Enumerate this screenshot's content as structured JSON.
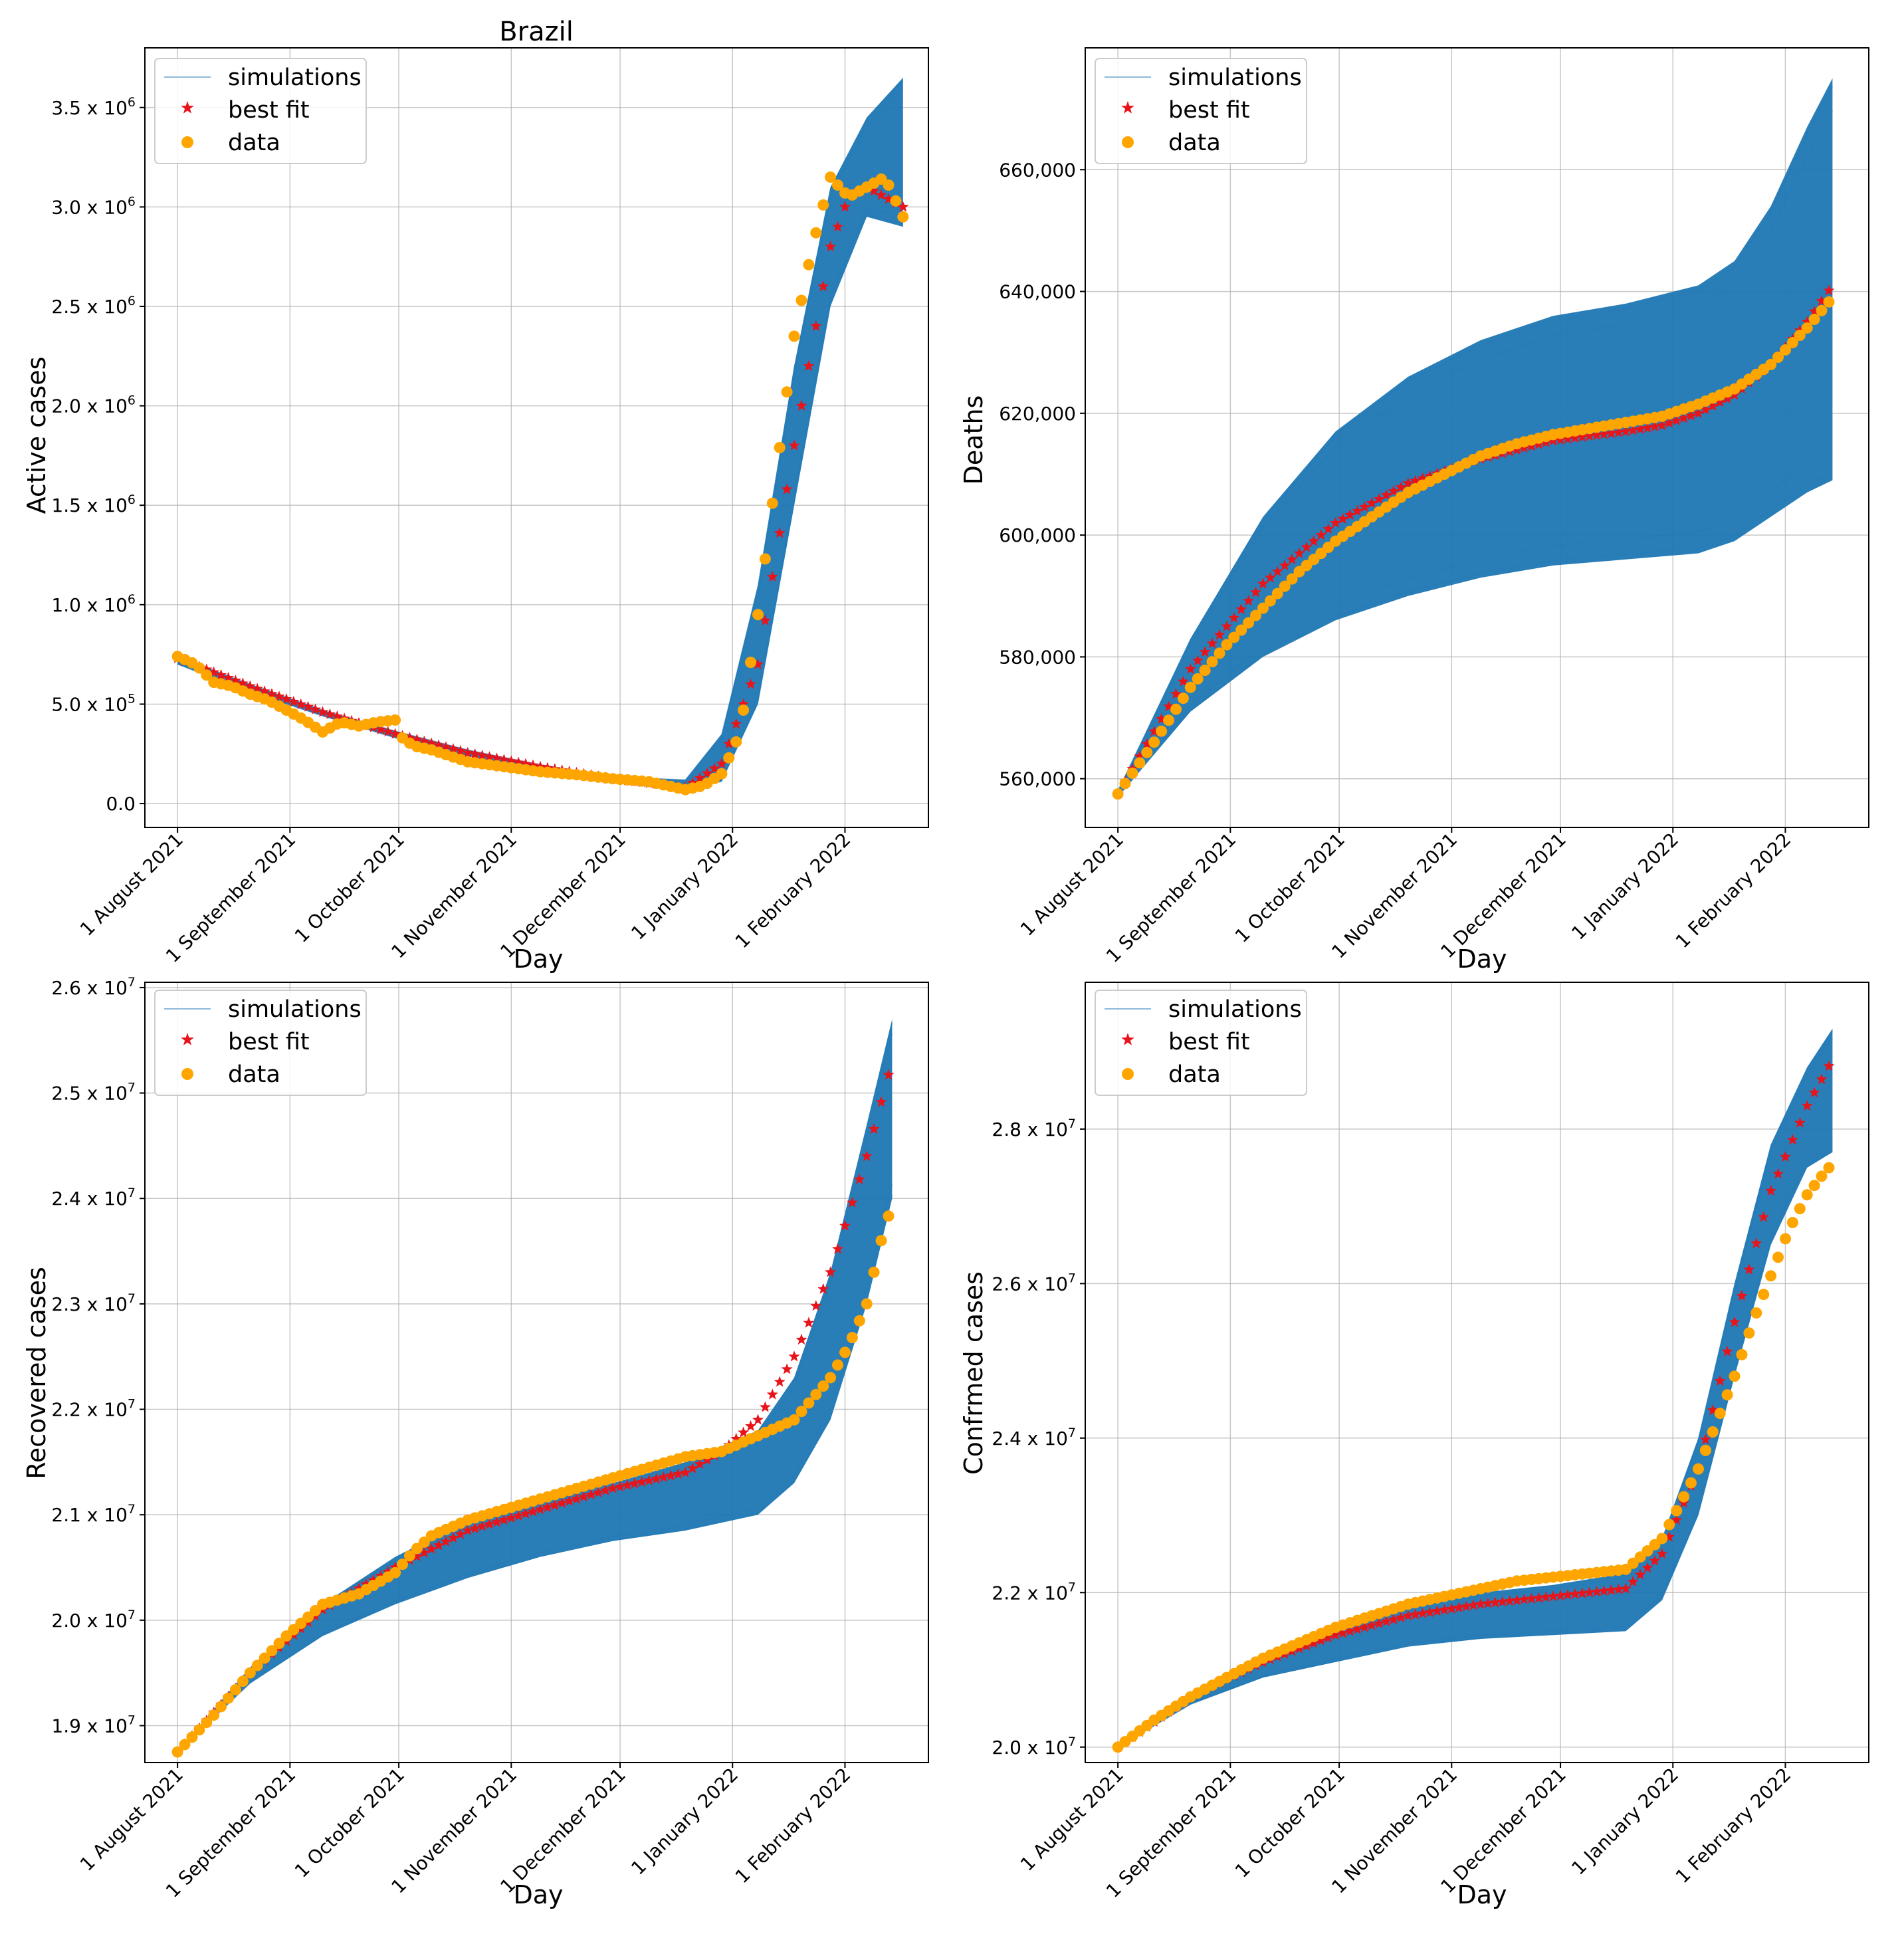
{
  "figure": {
    "title": "Brazil",
    "colors": {
      "simulations": "#1f77b4",
      "best_fit": "#e8141b",
      "data": "#ffa500",
      "grid": "#b0b0b0"
    },
    "legend": {
      "entries": [
        "simulations",
        "best fit",
        "data"
      ],
      "location": "top-left"
    }
  },
  "chart_data": [
    {
      "type": "line",
      "title": "Brazil",
      "xlabel": "Day",
      "ylabel": "Active cases",
      "x_ticks": [
        "1 August 2021",
        "1 September 2021",
        "1 October 2021",
        "1 November 2021",
        "1 December 2021",
        "1 January 2022",
        "1 February 2022"
      ],
      "x_tick_days": [
        0,
        31,
        61,
        92,
        122,
        153,
        184
      ],
      "xlim": [
        -9,
        207
      ],
      "ylim": [
        -120000,
        3800000
      ],
      "y_ticks": [
        0,
        500000,
        1000000,
        1500000,
        2000000,
        2500000,
        3000000,
        3500000
      ],
      "y_tick_labels": [
        {
          "m": "0.0",
          "e": ""
        },
        {
          "m": "5.0 x 10",
          "e": "5"
        },
        {
          "m": "1.0 x 10",
          "e": "6"
        },
        {
          "m": "1.5 x 10",
          "e": "6"
        },
        {
          "m": "2.0 x 10",
          "e": "6"
        },
        {
          "m": "2.5 x 10",
          "e": "6"
        },
        {
          "m": "3.0 x 10",
          "e": "6"
        },
        {
          "m": "3.5 x 10",
          "e": "6"
        }
      ],
      "simulation_band": {
        "days": [
          0,
          20,
          40,
          60,
          80,
          100,
          120,
          140,
          150,
          160,
          170,
          180,
          190,
          200
        ],
        "lower": [
          700000,
          560000,
          440000,
          330000,
          240000,
          165000,
          110000,
          65000,
          110000,
          500000,
          1500000,
          2500000,
          2950000,
          2900000
        ],
        "upper": [
          740000,
          600000,
          470000,
          365000,
          270000,
          195000,
          135000,
          120000,
          350000,
          1100000,
          2200000,
          3100000,
          3450000,
          3650000
        ]
      },
      "best_fit": {
        "days": [
          0,
          20,
          40,
          60,
          80,
          100,
          120,
          140,
          150,
          160,
          170,
          180,
          185,
          190,
          195,
          200
        ],
        "values": [
          730000,
          590000,
          460000,
          350000,
          255000,
          185000,
          125000,
          80000,
          200000,
          700000,
          1800000,
          2800000,
          3050000,
          3100000,
          3050000,
          3000000
        ]
      },
      "data": {
        "days": [
          0,
          5,
          10,
          15,
          20,
          25,
          30,
          35,
          40,
          45,
          50,
          55,
          60,
          62,
          65,
          70,
          75,
          80,
          90,
          100,
          110,
          120,
          130,
          140,
          145,
          150,
          155,
          160,
          165,
          170,
          175,
          180,
          185,
          190,
          195,
          200
        ],
        "values": [
          740000,
          700000,
          610000,
          590000,
          550000,
          520000,
          470000,
          420000,
          360000,
          410000,
          390000,
          410000,
          420000,
          330000,
          290000,
          270000,
          240000,
          210000,
          185000,
          160000,
          145000,
          125000,
          110000,
          70000,
          90000,
          150000,
          350000,
          950000,
          1650000,
          2350000,
          2800000,
          3150000,
          3050000,
          3100000,
          3150000,
          2950000
        ]
      }
    },
    {
      "type": "line",
      "title": "",
      "xlabel": "Day",
      "ylabel": "Deaths",
      "x_ticks": [
        "1 August 2021",
        "1 September 2021",
        "1 October 2021",
        "1 November 2021",
        "1 December 2021",
        "1 January 2022",
        "1 February 2022"
      ],
      "x_tick_days": [
        0,
        31,
        61,
        92,
        122,
        153,
        184
      ],
      "xlim": [
        -9,
        207
      ],
      "ylim": [
        552000,
        680000
      ],
      "y_ticks": [
        560000,
        580000,
        600000,
        620000,
        640000,
        660000
      ],
      "y_tick_labels": [
        {
          "m": "560,000",
          "e": ""
        },
        {
          "m": "580,000",
          "e": ""
        },
        {
          "m": "600,000",
          "e": ""
        },
        {
          "m": "620,000",
          "e": ""
        },
        {
          "m": "640,000",
          "e": ""
        },
        {
          "m": "660,000",
          "e": ""
        }
      ],
      "simulation_band": {
        "days": [
          0,
          20,
          40,
          60,
          80,
          100,
          120,
          140,
          160,
          170,
          180,
          190,
          197
        ],
        "lower": [
          557000,
          571000,
          580000,
          586000,
          590000,
          593000,
          595000,
          596000,
          597000,
          599000,
          603000,
          607000,
          609000
        ],
        "upper": [
          558000,
          583000,
          603000,
          617000,
          626000,
          632000,
          636000,
          638000,
          641000,
          645000,
          654000,
          667000,
          675000
        ]
      },
      "best_fit": {
        "days": [
          0,
          20,
          40,
          60,
          80,
          100,
          120,
          140,
          150,
          160,
          170,
          180,
          190,
          197
        ],
        "values": [
          557500,
          578000,
          592000,
          602000,
          608500,
          612500,
          615500,
          617000,
          618000,
          620000,
          623000,
          628000,
          635000,
          641000
        ]
      },
      "data": {
        "days": [
          0,
          10,
          20,
          30,
          40,
          50,
          60,
          70,
          80,
          90,
          100,
          110,
          120,
          130,
          140,
          150,
          160,
          170,
          180,
          190,
          197
        ],
        "values": [
          557500,
          566000,
          575000,
          582000,
          588000,
          594000,
          599000,
          603000,
          607000,
          610000,
          613000,
          615000,
          616500,
          617500,
          618500,
          619500,
          621500,
          624000,
          628000,
          634000,
          639000
        ]
      }
    },
    {
      "type": "line",
      "title": "",
      "xlabel": "Day",
      "ylabel": "Recovered cases",
      "x_ticks": [
        "1 August 2021",
        "1 September 2021",
        "1 October 2021",
        "1 November 2021",
        "1 December 2021",
        "1 January 2022",
        "1 February 2022"
      ],
      "x_tick_days": [
        0,
        31,
        61,
        92,
        122,
        153,
        184
      ],
      "xlim": [
        -9,
        207
      ],
      "ylim": [
        18650000,
        26050000
      ],
      "y_ticks": [
        19000000,
        20000000,
        21000000,
        22000000,
        23000000,
        24000000,
        25000000,
        26000000
      ],
      "y_tick_labels": [
        {
          "m": "1.9 x 10",
          "e": "7"
        },
        {
          "m": "2.0 x 10",
          "e": "7"
        },
        {
          "m": "2.1 x 10",
          "e": "7"
        },
        {
          "m": "2.2 x 10",
          "e": "7"
        },
        {
          "m": "2.3 x 10",
          "e": "7"
        },
        {
          "m": "2.4 x 10",
          "e": "7"
        },
        {
          "m": "2.5 x 10",
          "e": "7"
        },
        {
          "m": "2.6 x 10",
          "e": "7"
        }
      ],
      "simulation_band": {
        "days": [
          0,
          20,
          40,
          60,
          80,
          100,
          120,
          140,
          160,
          170,
          180,
          190,
          197
        ],
        "lower": [
          18750000,
          19400000,
          19850000,
          20150000,
          20400000,
          20600000,
          20750000,
          20850000,
          21000000,
          21300000,
          21900000,
          23000000,
          24000000
        ],
        "upper": [
          18750000,
          19550000,
          20150000,
          20600000,
          20950000,
          21150000,
          21300000,
          21500000,
          21800000,
          22300000,
          23300000,
          24700000,
          25700000
        ]
      },
      "best_fit": {
        "days": [
          0,
          20,
          40,
          60,
          80,
          100,
          120,
          140,
          150,
          160,
          170,
          180,
          190,
          197
        ],
        "values": [
          18750000,
          19500000,
          20100000,
          20500000,
          20850000,
          21050000,
          21250000,
          21400000,
          21600000,
          21900000,
          22500000,
          23300000,
          24400000,
          25300000
        ]
      },
      "data": {
        "days": [
          0,
          10,
          20,
          30,
          40,
          50,
          55,
          60,
          65,
          70,
          80,
          90,
          100,
          110,
          120,
          130,
          140,
          150,
          160,
          170,
          175,
          180,
          185,
          190,
          194,
          197
        ],
        "values": [
          18750000,
          19100000,
          19500000,
          19850000,
          20150000,
          20250000,
          20350000,
          20450000,
          20650000,
          20800000,
          20950000,
          21050000,
          21150000,
          21250000,
          21350000,
          21450000,
          21550000,
          21600000,
          21750000,
          21900000,
          22100000,
          22300000,
          22600000,
          23000000,
          23600000,
          23950000
        ]
      }
    },
    {
      "type": "line",
      "title": "",
      "xlabel": "Day",
      "ylabel": "Confrmed cases",
      "x_ticks": [
        "1 August 2021",
        "1 September 2021",
        "1 October 2021",
        "1 November 2021",
        "1 December 2021",
        "1 January 2022",
        "1 February 2022"
      ],
      "x_tick_days": [
        0,
        31,
        61,
        92,
        122,
        153,
        184
      ],
      "xlim": [
        -9,
        207
      ],
      "ylim": [
        19800000,
        29900000
      ],
      "y_ticks": [
        20000000,
        22000000,
        24000000,
        26000000,
        28000000
      ],
      "y_tick_labels": [
        {
          "m": "2.0 x 10",
          "e": "7"
        },
        {
          "m": "2.2 x 10",
          "e": "7"
        },
        {
          "m": "2.4 x 10",
          "e": "7"
        },
        {
          "m": "2.6 x 10",
          "e": "7"
        },
        {
          "m": "2.8 x 10",
          "e": "7"
        }
      ],
      "simulation_band": {
        "days": [
          0,
          20,
          40,
          60,
          80,
          100,
          120,
          140,
          150,
          160,
          170,
          180,
          190,
          197
        ],
        "lower": [
          20000000,
          20550000,
          20900000,
          21100000,
          21300000,
          21400000,
          21450000,
          21500000,
          21900000,
          23000000,
          24800000,
          26500000,
          27500000,
          27700000
        ],
        "upper": [
          20000000,
          20700000,
          21200000,
          21600000,
          21850000,
          22000000,
          22100000,
          22250000,
          22700000,
          24000000,
          26000000,
          27800000,
          28800000,
          29300000
        ]
      },
      "best_fit": {
        "days": [
          0,
          20,
          40,
          60,
          80,
          100,
          120,
          140,
          150,
          160,
          170,
          180,
          190,
          197
        ],
        "values": [
          20000000,
          20650000,
          21100000,
          21450000,
          21700000,
          21850000,
          21950000,
          22050000,
          22500000,
          23600000,
          25500000,
          27200000,
          28300000,
          28900000
        ]
      },
      "data": {
        "days": [
          0,
          10,
          20,
          30,
          40,
          50,
          60,
          70,
          80,
          90,
          100,
          110,
          120,
          130,
          140,
          150,
          160,
          170,
          175,
          180,
          185,
          190,
          195,
          197
        ],
        "values": [
          20000000,
          20350000,
          20650000,
          20900000,
          21150000,
          21350000,
          21550000,
          21700000,
          21850000,
          21950000,
          22050000,
          22150000,
          22200000,
          22250000,
          22300000,
          22700000,
          23600000,
          24800000,
          25500000,
          26100000,
          26700000,
          27150000,
          27450000,
          27550000
        ]
      }
    }
  ]
}
